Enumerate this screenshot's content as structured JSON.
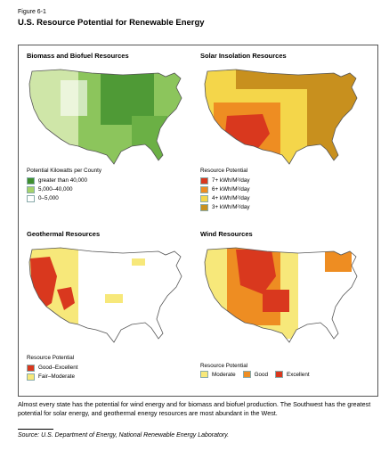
{
  "figure_label": "Figure 6-1",
  "figure_title": "U.S. Resource Potential for Renewable Energy",
  "panels": {
    "biomass": {
      "title": "Biomass and Biofuel Resources",
      "legend_title": "Potential Kilowatts per County",
      "legend": [
        {
          "label": "greater than 40,000",
          "color": "#3f8f2e"
        },
        {
          "label": "5,000–40,000",
          "color": "#a6d36b"
        },
        {
          "label": "0–5,000",
          "color": "#ffffff"
        }
      ]
    },
    "solar": {
      "title": "Solar Insolation Resources",
      "legend_title": "Resource Potential",
      "legend": [
        {
          "label": "7+ kWh/M²/day",
          "color": "#d9381e"
        },
        {
          "label": "6+ kWh/M²/day",
          "color": "#ee8d22"
        },
        {
          "label": "4+ kWh/M²/day",
          "color": "#f4d64a"
        },
        {
          "label": "3+ kWh/M²/day",
          "color": "#c8901e"
        }
      ]
    },
    "geothermal": {
      "title": "Geothermal Resources",
      "legend_title": "Resource Potential",
      "legend": [
        {
          "label": "Good–Excellent",
          "color": "#d9381e"
        },
        {
          "label": "Fair–Moderate",
          "color": "#f7e87a"
        }
      ]
    },
    "wind": {
      "title": "Wind Resources",
      "legend_title": "Resource Potential",
      "legend": [
        {
          "label": "Moderate",
          "color": "#f7e87a"
        },
        {
          "label": "Good",
          "color": "#ee8d22"
        },
        {
          "label": "Excellent",
          "color": "#d9381e"
        }
      ]
    }
  },
  "caption": "Almost every state has the potential for wind energy and for biomass and biofuel production.  The Southwest has the greatest potential for solar energy, and geothermal energy resources are most abundant in the West.",
  "source": "Source: U.S. Department of Energy, National Renewable Energy Laboratory."
}
